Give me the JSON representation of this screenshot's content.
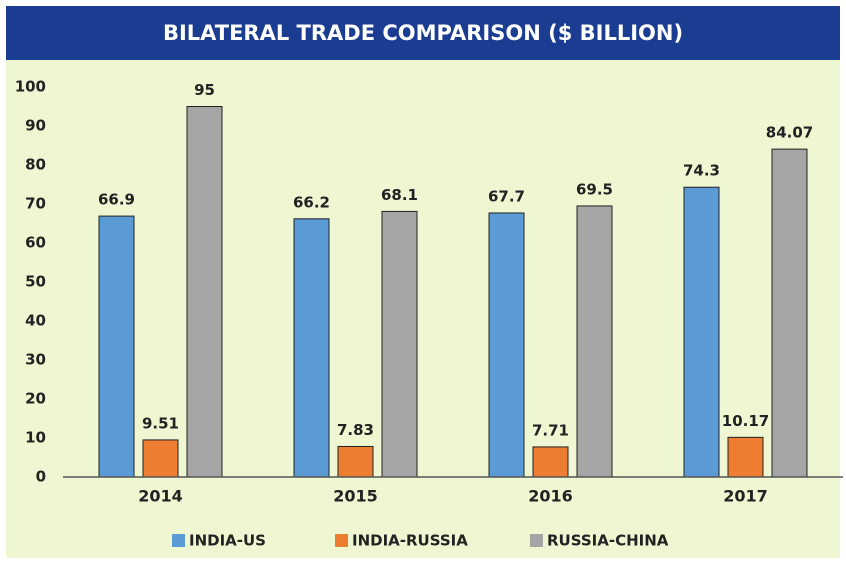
{
  "chart_data": {
    "type": "bar",
    "title": "BILATERAL TRADE COMPARISON ($ BILLION)",
    "categories": [
      "2014",
      "2015",
      "2016",
      "2017"
    ],
    "series": [
      {
        "name": "INDIA-US",
        "color": "#5b9bd5",
        "values": [
          66.9,
          66.2,
          67.7,
          74.3
        ]
      },
      {
        "name": "INDIA-RUSSIA",
        "color": "#ed7d31",
        "values": [
          9.51,
          7.83,
          7.71,
          10.17
        ]
      },
      {
        "name": "RUSSIA-CHINA",
        "color": "#a5a5a5",
        "values": [
          95,
          68.1,
          69.5,
          84.07
        ]
      }
    ],
    "ylim": [
      0,
      100
    ],
    "yticks": [
      0,
      10,
      20,
      30,
      40,
      50,
      60,
      70,
      80,
      90,
      100
    ],
    "grid": false,
    "legend": "bottom"
  }
}
